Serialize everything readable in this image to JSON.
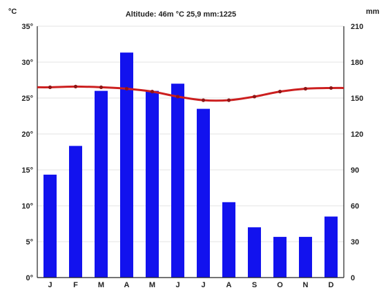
{
  "chart_data": {
    "type": "bar",
    "title": "Altitude: 46m  °C 25,9  mm:1225",
    "categories": [
      "J",
      "F",
      "M",
      "A",
      "M",
      "J",
      "J",
      "A",
      "S",
      "O",
      "N",
      "D"
    ],
    "series": [
      {
        "name": "mm",
        "type": "bar",
        "axis": "right",
        "values": [
          86,
          110,
          156,
          188,
          156,
          162,
          141,
          63,
          42,
          34,
          34,
          51
        ]
      },
      {
        "name": "°C",
        "type": "line",
        "axis": "left",
        "values": [
          26.5,
          26.6,
          26.5,
          26.3,
          25.9,
          25.2,
          24.7,
          24.7,
          25.2,
          25.9,
          26.3,
          26.4
        ]
      }
    ],
    "ylabel_left": "°C",
    "ylabel_right": "mm",
    "ylim_left": [
      0,
      35
    ],
    "ylim_right": [
      0,
      210
    ],
    "left_ticks": [
      "0°",
      "5°",
      "10°",
      "15°",
      "20°",
      "25°",
      "30°",
      "35°"
    ],
    "right_ticks": [
      "0",
      "30",
      "60",
      "90",
      "120",
      "150",
      "180",
      "210"
    ],
    "grid": true,
    "colors": {
      "bars": "#1212ee",
      "line": "#cc1f1f",
      "grid": "#e3e3e3"
    }
  }
}
